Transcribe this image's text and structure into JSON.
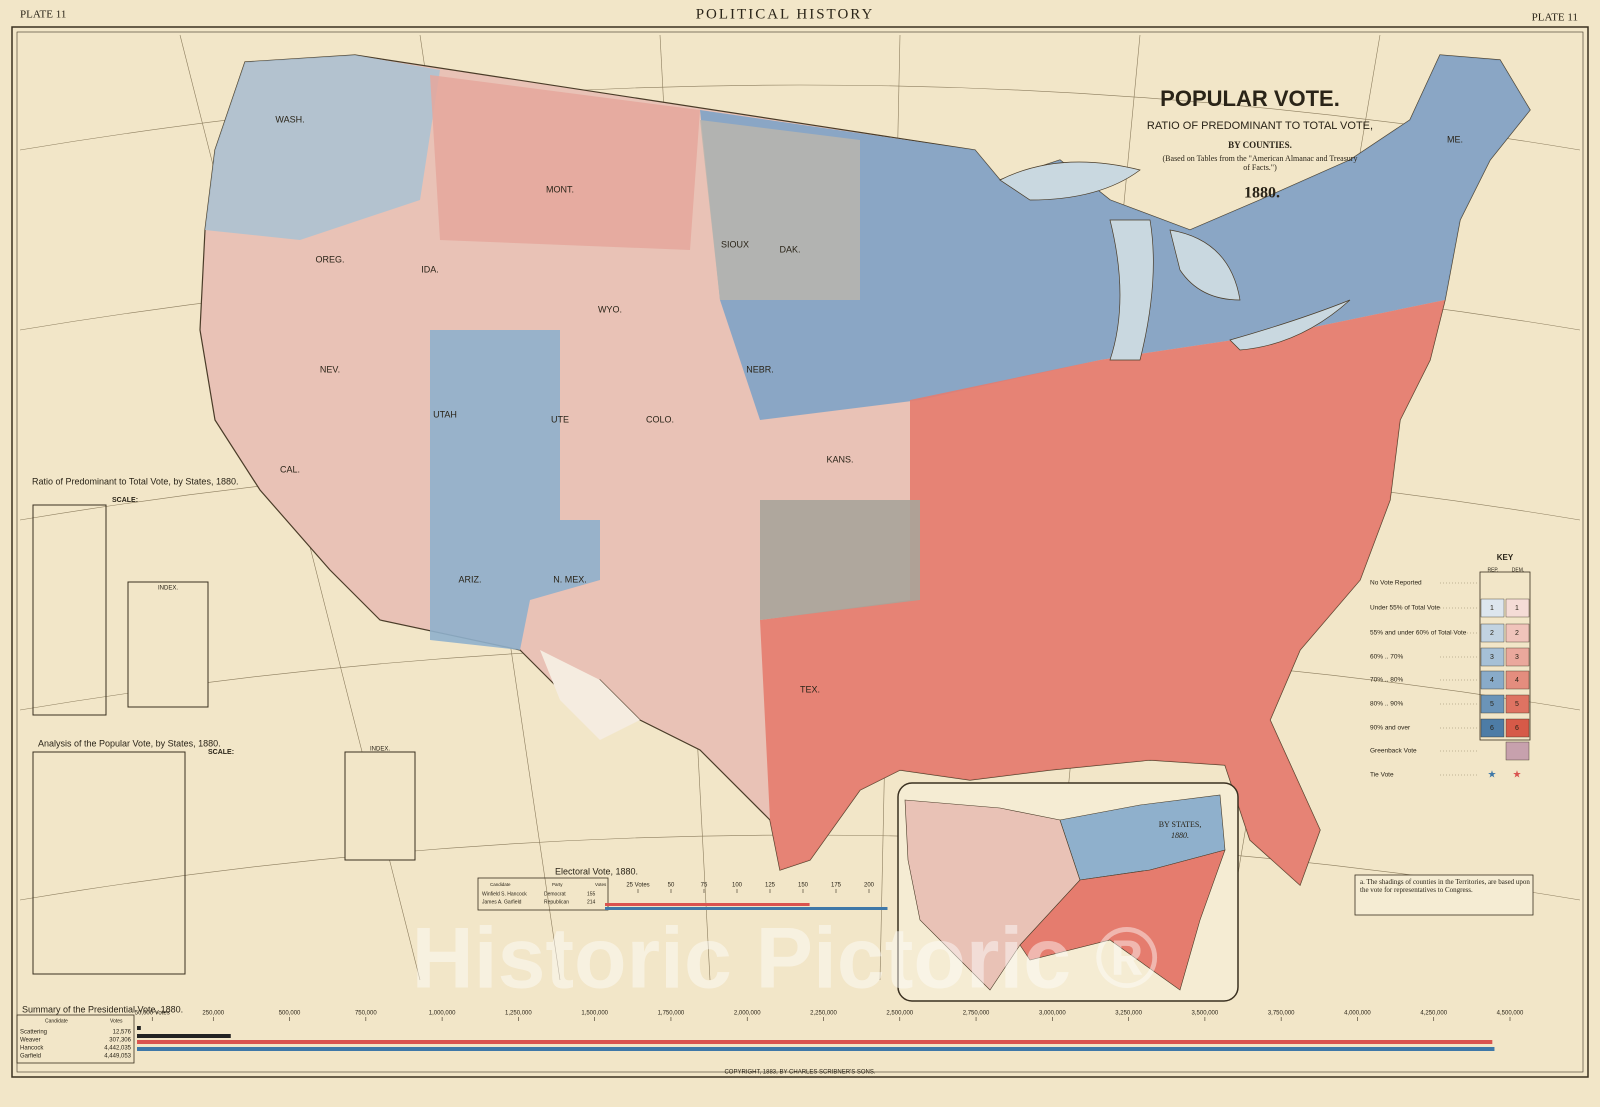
{
  "header": {
    "left": "PLATE 11",
    "title": "POLITICAL HISTORY",
    "right": "PLATE 11"
  },
  "map_title": {
    "title": "POPULAR VOTE.",
    "subtitle": "RATIO OF PREDOMINANT TO TOTAL VOTE,",
    "by": "BY COUNTIES.",
    "source": "(Based on Tables from the \"American Almanac and Treasury of Facts.\")",
    "year": "1880."
  },
  "map_labels": [
    "WASH.",
    "OREG.",
    "CAL.",
    "NEV.",
    "IDA.",
    "MONT.",
    "UTAH",
    "ARIZ.",
    "N. MEX.",
    "WYO.",
    "COLO.",
    "DAK.",
    "NEBR.",
    "KANS.",
    "TEX.",
    "ME.",
    "SIOUX",
    "UTE"
  ],
  "key": {
    "title": "KEY",
    "columns": [
      "REP.",
      "DEM."
    ],
    "rows": [
      "No Vote Reported",
      "Under 55% of Total Vote",
      "55% and under 60% of Total Vote",
      "60% .. 70%",
      "70% .. 80%",
      "80% .. 90%",
      "90% and over",
      "Greenback Vote",
      "Tie Vote"
    ],
    "levels": [
      1,
      2,
      3,
      4,
      5,
      6
    ]
  },
  "inset": {
    "title": "BY STATES,",
    "year": "1880."
  },
  "notes": {
    "territories": "a. The shadings of counties in the Territories, are based upon the vote for representatives to Congress.",
    "copyright": "COPYRIGHT, 1883, BY CHARLES SCRIBNER'S SONS.",
    "watermark": "Historic Pictoric ®"
  },
  "tables": {
    "ratio": "Ratio of Predominant to Total Vote, by States, 1880.",
    "ratio_scale": "SCALE:",
    "ratio_index": "INDEX.",
    "analysis": "Analysis of the Popular Vote, by States, 1880.",
    "analysis_index": "INDEX.",
    "analysis_scale": "SCALE:"
  },
  "electoral_table": {
    "columns": [
      "Candidate",
      "Party",
      "Votes"
    ],
    "rows": [
      [
        "Winfield S. Hancock",
        "Democrat",
        "155"
      ],
      [
        "James A. Garfield",
        "Republican",
        "214"
      ]
    ]
  },
  "summary_table": {
    "columns": [
      "Candidate",
      "Votes"
    ]
  },
  "chart_data": [
    {
      "type": "bar",
      "title": "Electoral Vote, 1880.",
      "categories": [
        "Hancock",
        "Garfield"
      ],
      "values": [
        155,
        214
      ],
      "colors": [
        "#d9534f",
        "#3f78a8"
      ],
      "xlim": [
        0,
        225
      ],
      "xticks": [
        {
          "value": 25,
          "label": "25 Votes"
        },
        50,
        75,
        100,
        125,
        150,
        175,
        200
      ]
    },
    {
      "type": "bar",
      "title": "Summary of the Presidential Vote, 1880.",
      "categories": [
        "Scattering",
        "Weaver",
        "Hancock",
        "Garfield"
      ],
      "values": [
        12576,
        307306,
        4442035,
        4449053
      ],
      "value_labels": [
        "12,576",
        "307,306",
        "4,442,035",
        "4,449,053"
      ],
      "colors": [
        "#222222",
        "#222222",
        "#d9534f",
        "#3f78a8"
      ],
      "xlim": [
        0,
        4500000
      ],
      "xticks": [
        {
          "value": 50000,
          "label": "50,000 Votes"
        },
        {
          "value": 250000,
          "label": "250,000"
        },
        {
          "value": 500000,
          "label": "500,000"
        },
        {
          "value": 750000,
          "label": "750,000"
        },
        {
          "value": 1000000,
          "label": "1,000,000"
        },
        {
          "value": 1250000,
          "label": "1,250,000"
        },
        {
          "value": 1500000,
          "label": "1,500,000"
        },
        {
          "value": 1750000,
          "label": "1,750,000"
        },
        {
          "value": 2000000,
          "label": "2,000,000"
        },
        {
          "value": 2250000,
          "label": "2,250,000"
        },
        {
          "value": 2500000,
          "label": "2,500,000"
        },
        {
          "value": 2750000,
          "label": "2,750,000"
        },
        {
          "value": 3000000,
          "label": "3,000,000"
        },
        {
          "value": 3250000,
          "label": "3,250,000"
        },
        {
          "value": 3500000,
          "label": "3,500,000"
        },
        {
          "value": 3750000,
          "label": "3,750,000"
        },
        {
          "value": 4000000,
          "label": "4,000,000"
        },
        {
          "value": 4250000,
          "label": "4,250,000"
        },
        {
          "value": 4500000,
          "label": "4,500,000"
        }
      ]
    }
  ]
}
